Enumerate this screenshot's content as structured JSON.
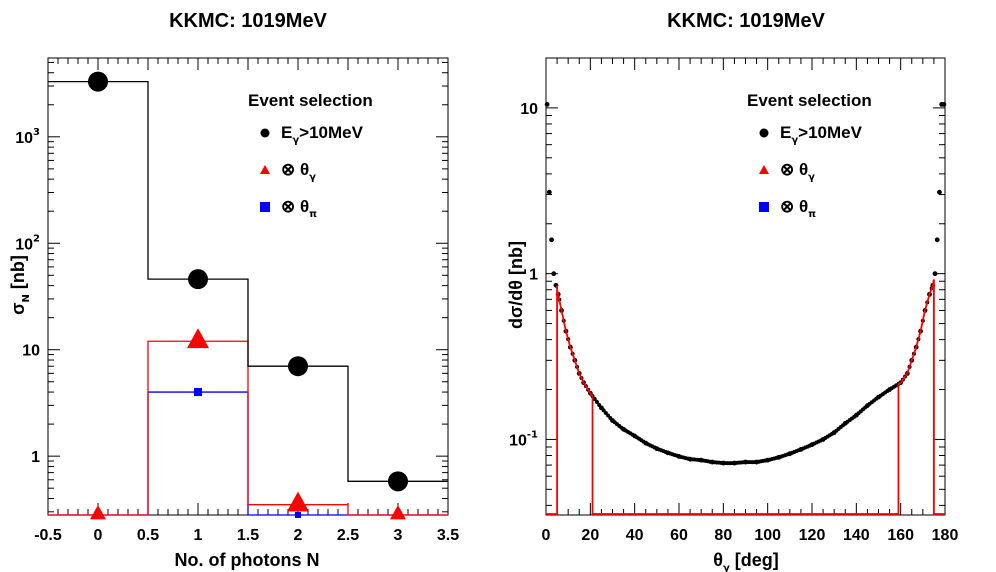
{
  "chart_data": [
    {
      "type": "bar",
      "title": "KKMC: 1019MeV",
      "xlabel": "No. of photons N",
      "ylabel_symbol": "σ",
      "ylabel_sub": "N",
      "ylabel_unit": " [nb]",
      "xlim": [
        -0.5,
        3.5
      ],
      "ylim": [
        0.28,
        5500
      ],
      "yscale": "log",
      "xticks": [
        "-0.5",
        "0",
        "0.5",
        "1",
        "1.5",
        "2",
        "2.5",
        "3",
        "3.5"
      ],
      "yticks": [
        {
          "value": 1,
          "base": "1",
          "exp": ""
        },
        {
          "value": 10,
          "base": "10",
          "exp": ""
        },
        {
          "value": 100,
          "base": "10",
          "exp": "2"
        },
        {
          "value": 1000,
          "base": "10",
          "exp": "3"
        }
      ],
      "categories": [
        "0",
        "1",
        "2",
        "3"
      ],
      "series": [
        {
          "name": "Eγ>10MeV",
          "color": "#000000",
          "marker": "circle",
          "values": [
            3300,
            46,
            7,
            0.58
          ]
        },
        {
          "name": "⊗ θγ",
          "color": "#ff0000",
          "marker": "triangle",
          "values": [
            0.28,
            12,
            0.35,
            0.28
          ]
        },
        {
          "name": "⊗ θπ",
          "color": "#0000ff",
          "marker": "square",
          "values": [
            0.28,
            4,
            0.28,
            0.28
          ]
        }
      ],
      "legend": {
        "title": "Event selection",
        "position": "top-right",
        "entries": [
          {
            "marker": "circle",
            "color": "#000000",
            "text_main": "E",
            "sub": "γ",
            "text_rest": ">10MeV"
          },
          {
            "marker": "triangle",
            "color": "#ff0000",
            "text_main": "⊗ θ",
            "sub": "γ",
            "text_rest": ""
          },
          {
            "marker": "square",
            "color": "#0000ff",
            "text_main": "⊗ θ",
            "sub": "π",
            "text_rest": ""
          }
        ]
      }
    },
    {
      "type": "line",
      "title": "KKMC: 1019MeV",
      "xlabel_main": "θ",
      "xlabel_sub": "γ",
      "xlabel_unit": " [deg]",
      "ylabel": "dσ/dθ [nb]",
      "xlim": [
        0,
        180
      ],
      "ylim": [
        0.035,
        20
      ],
      "yscale": "log",
      "xticks": [
        "0",
        "20",
        "40",
        "60",
        "80",
        "100",
        "120",
        "140",
        "160",
        "180"
      ],
      "yticks": [
        {
          "value": 0.1,
          "base": "10",
          "exp": "-1"
        },
        {
          "value": 1,
          "base": "1",
          "exp": ""
        },
        {
          "value": 10,
          "base": "10",
          "exp": ""
        }
      ],
      "series": [
        {
          "name": "Eγ>10MeV",
          "color": "#000000",
          "marker": "dot",
          "x": [
            0.5,
            1.5,
            2.5,
            3.5,
            4.5,
            5.5,
            7,
            9,
            11,
            13,
            15,
            17,
            20,
            25,
            30,
            35,
            40,
            45,
            50,
            55,
            60,
            65,
            70,
            75,
            80,
            85,
            90,
            95,
            100,
            105,
            110,
            115,
            120,
            125,
            130,
            135,
            140,
            145,
            150,
            155,
            160,
            163,
            165,
            167,
            169,
            171,
            173,
            174.5,
            175.5,
            176.5,
            177.5,
            178.5,
            179.5
          ],
          "y": [
            10.5,
            3.1,
            1.6,
            1.0,
            0.85,
            0.75,
            0.6,
            0.45,
            0.36,
            0.3,
            0.25,
            0.22,
            0.19,
            0.155,
            0.13,
            0.115,
            0.105,
            0.095,
            0.088,
            0.083,
            0.079,
            0.076,
            0.075,
            0.073,
            0.072,
            0.072,
            0.073,
            0.073,
            0.075,
            0.078,
            0.082,
            0.087,
            0.093,
            0.1,
            0.11,
            0.125,
            0.14,
            0.16,
            0.18,
            0.2,
            0.22,
            0.25,
            0.3,
            0.36,
            0.45,
            0.6,
            0.75,
            0.85,
            1.0,
            1.6,
            3.1,
            10.5,
            10.5
          ]
        },
        {
          "name": "⊗ θγ",
          "color": "#ff0000",
          "marker": "line",
          "x": [
            5,
            7,
            9,
            11,
            13,
            15,
            17,
            19,
            21,
            159,
            161,
            163,
            165,
            167,
            169,
            171,
            173,
            175
          ],
          "y": [
            0.85,
            0.6,
            0.45,
            0.36,
            0.3,
            0.25,
            0.23,
            0.21,
            0.2,
            0.2,
            0.22,
            0.25,
            0.3,
            0.36,
            0.45,
            0.6,
            0.75,
            0.85
          ]
        }
      ],
      "legend": {
        "title": "Event selection",
        "position": "top-right",
        "entries": [
          {
            "marker": "circle",
            "color": "#000000",
            "text_main": "E",
            "sub": "γ",
            "text_rest": ">10MeV"
          },
          {
            "marker": "triangle",
            "color": "#ff0000",
            "text_main": "⊗ θ",
            "sub": "γ",
            "text_rest": ""
          },
          {
            "marker": "square",
            "color": "#0000ff",
            "text_main": "⊗ θ",
            "sub": "π",
            "text_rest": ""
          }
        ]
      }
    }
  ]
}
